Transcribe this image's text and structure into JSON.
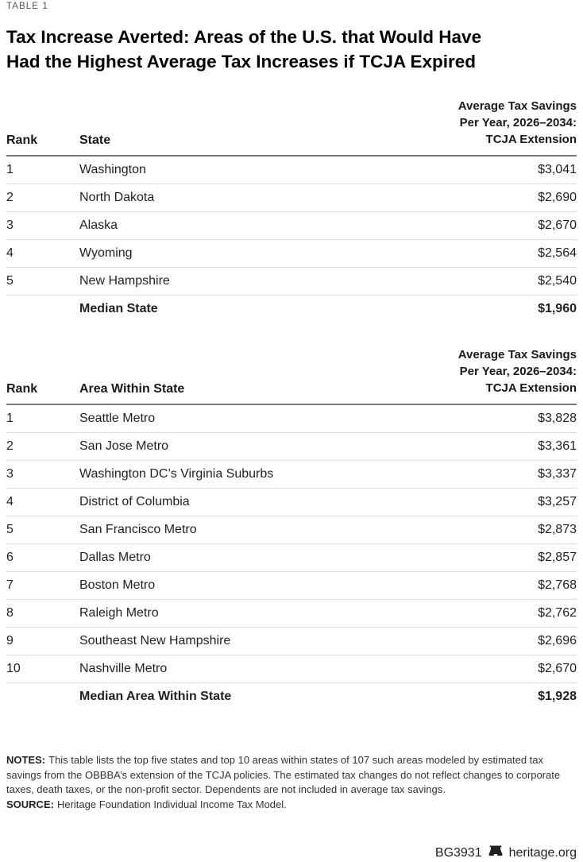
{
  "kicker": "TABLE 1",
  "title_lines": [
    "Tax Increase Averted: Areas of the U.S. that Would Have",
    "Had the Highest Average Tax Increases if TCJA Expired"
  ],
  "chart_data": [
    {
      "type": "table",
      "headers": {
        "rank": "Rank",
        "name": "State",
        "value_lines": [
          "Average Tax Savings",
          "Per Year, 2026–2034:",
          "TCJA Extension"
        ]
      },
      "rows": [
        [
          "1",
          "Washington",
          "$3,041"
        ],
        [
          "2",
          "North Dakota",
          "$2,690"
        ],
        [
          "3",
          "Alaska",
          "$2,670"
        ],
        [
          "4",
          "Wyoming",
          "$2,564"
        ],
        [
          "5",
          "New Hampshire",
          "$2,540"
        ]
      ],
      "summary": {
        "label": "Median State",
        "value": "$1,960"
      }
    },
    {
      "type": "table",
      "headers": {
        "rank": "Rank",
        "name": "Area Within State",
        "value_lines": [
          "Average Tax Savings",
          "Per Year, 2026–2034:",
          "TCJA Extension"
        ]
      },
      "rows": [
        [
          "1",
          "Seattle Metro",
          "$3,828"
        ],
        [
          "2",
          "San Jose Metro",
          "$3,361"
        ],
        [
          "3",
          "Washington DC’s Virginia Suburbs",
          "$3,337"
        ],
        [
          "4",
          "District of Columbia",
          "$3,257"
        ],
        [
          "5",
          "San Francisco Metro",
          "$2,873"
        ],
        [
          "6",
          "Dallas Metro",
          "$2,857"
        ],
        [
          "7",
          "Boston Metro",
          "$2,768"
        ],
        [
          "8",
          "Raleigh Metro",
          "$2,762"
        ],
        [
          "9",
          "Southeast New Hampshire",
          "$2,696"
        ],
        [
          "10",
          "Nashville Metro",
          "$2,670"
        ]
      ],
      "summary": {
        "label": "Median Area Within State",
        "value": "$1,928"
      }
    }
  ],
  "notes": {
    "label": "NOTES:",
    "text": "This table lists the top five states and top 10 areas within states of 107 such areas modeled by estimated tax savings from the OBBBA’s extension of the TCJA policies. The estimated tax changes do not reflect changes to corporate taxes, death taxes, or the non-profit sector. Dependents are not included in average tax savings."
  },
  "source": {
    "label": "SOURCE:",
    "text": "Heritage Foundation Individual Income Tax Model."
  },
  "footer": {
    "doc_id": "BG3931",
    "site": "heritage.org"
  },
  "colors": {
    "header_rule": "#77787b",
    "row_divider": "#dcdddd",
    "kicker_gray": "#55565a",
    "text_dark": "#231f20"
  }
}
